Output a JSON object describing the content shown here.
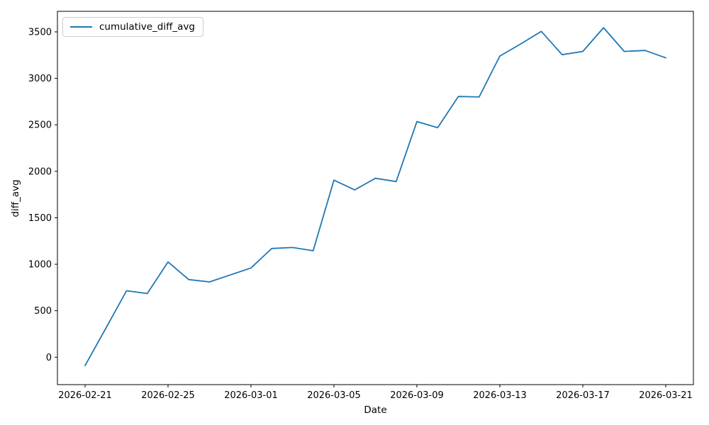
{
  "chart_data": {
    "type": "line",
    "title": "",
    "xlabel": "Date",
    "ylabel": "diff_avg",
    "legend": [
      "cumulative_diff_avg"
    ],
    "legend_position": "upper left",
    "grid": false,
    "line_color": "#1f77b4",
    "axis_color": "#000000",
    "x": [
      "2026-02-21",
      "2026-02-22",
      "2026-02-23",
      "2026-02-24",
      "2026-02-25",
      "2026-02-26",
      "2026-02-27",
      "2026-02-28",
      "2026-03-01",
      "2026-03-02",
      "2026-03-03",
      "2026-03-04",
      "2026-03-05",
      "2026-03-06",
      "2026-03-07",
      "2026-03-08",
      "2026-03-09",
      "2026-03-10",
      "2026-03-11",
      "2026-03-12",
      "2026-03-13",
      "2026-03-14",
      "2026-03-15",
      "2026-03-16",
      "2026-03-17",
      "2026-03-18",
      "2026-03-19",
      "2026-03-20",
      "2026-03-21"
    ],
    "values": [
      -90,
      310,
      715,
      685,
      1025,
      835,
      810,
      885,
      960,
      1170,
      1180,
      1145,
      1905,
      1800,
      1925,
      1890,
      2535,
      2470,
      2805,
      2800,
      3240,
      3370,
      3505,
      3255,
      3290,
      3545,
      3290,
      3300,
      3220
    ],
    "xticks": [
      "2026-02-21",
      "2026-02-25",
      "2026-03-01",
      "2026-03-05",
      "2026-03-09",
      "2026-03-13",
      "2026-03-17",
      "2026-03-21"
    ],
    "yticks": [
      0,
      500,
      1000,
      1500,
      2000,
      2500,
      3000,
      3500
    ],
    "ylim": [
      -295,
      3721
    ],
    "xlim_days": [
      -1.333,
      29.333
    ]
  }
}
